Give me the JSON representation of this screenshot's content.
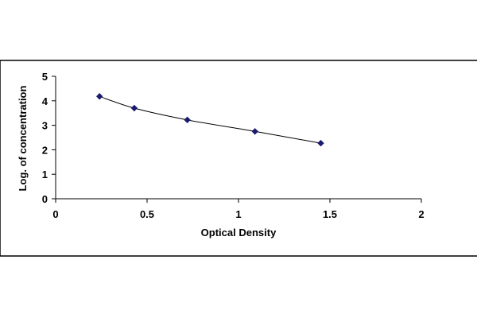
{
  "chart_data": {
    "type": "scatter",
    "xlabel": "Optical Density",
    "ylabel": "Log. of concentration",
    "xlim": [
      0,
      2
    ],
    "ylim": [
      0,
      5
    ],
    "xticks": [
      "0",
      "0.5",
      "1",
      "1.5",
      "2"
    ],
    "yticks": [
      "0",
      "1",
      "2",
      "3",
      "4",
      "5"
    ],
    "grid": false,
    "legend": "none",
    "marker_color": "#1a1a6e",
    "line_color": "#000000",
    "series": [
      {
        "x": [
          0.24,
          0.43,
          0.72,
          1.09,
          1.45
        ],
        "y": [
          4.18,
          3.7,
          3.22,
          2.75,
          2.27
        ]
      }
    ]
  }
}
